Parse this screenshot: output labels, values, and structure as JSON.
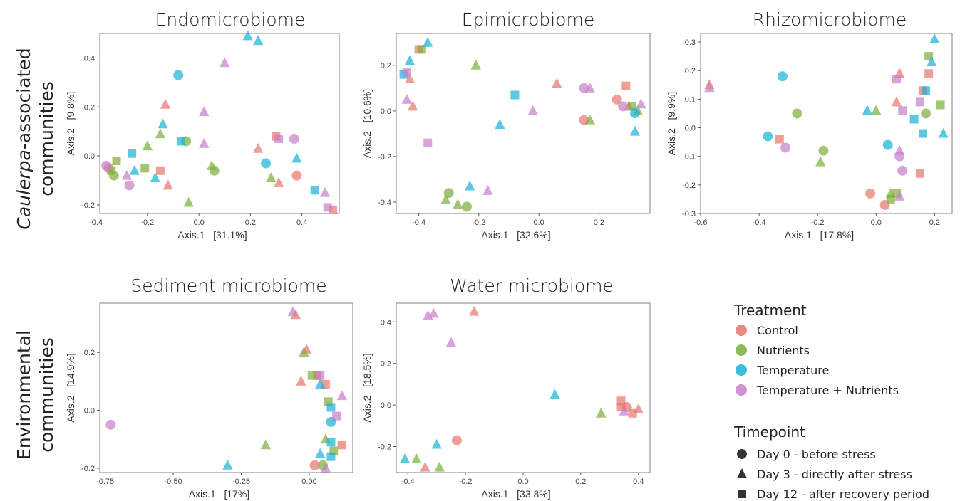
{
  "row_labels": {
    "top_line1": "Caulerpa-associated",
    "top_line1_italic": "Caulerpa",
    "top_line1_rest": "-associated",
    "top_line2": "communities",
    "bottom_line1": "Environmental",
    "bottom_line2": "communities"
  },
  "legend": {
    "treatment_title": "Treatment",
    "treatments": [
      {
        "name": "Control",
        "color": "#e8736b"
      },
      {
        "name": "Nutrients",
        "color": "#7cae3a"
      },
      {
        "name": "Temperature",
        "color": "#17b1d6"
      },
      {
        "name": "Temperature + Nutrients",
        "color": "#c57ec9"
      }
    ],
    "timepoint_title": "Timepoint",
    "timepoints": [
      {
        "name": "Day 0 - before stress",
        "shape": "circle"
      },
      {
        "name": "Day 3 - directly after stress",
        "shape": "triangle"
      },
      {
        "name": "Day 12 - after recovery period",
        "shape": "square"
      }
    ]
  },
  "chart_data": [
    {
      "type": "scatter",
      "title": "Endomicrobiome",
      "xlabel": "Axis.1   [31.1%]",
      "ylabel": "Axis.2   [9.8%]",
      "xlim": [
        -0.385,
        0.545
      ],
      "ylim": [
        -0.235,
        0.5
      ],
      "xticks": [
        -0.4,
        -0.2,
        0.0,
        0.2,
        0.4
      ],
      "xtick_labels": [
        "-0.4",
        "-0.2",
        "0.0",
        "0.2",
        "0.4"
      ],
      "yticks": [
        -0.2,
        0.0,
        0.2,
        0.4
      ],
      "ytick_labels": [
        "-0.2",
        "0.0",
        "0.2",
        "0.4"
      ],
      "points": [
        {
          "x": -0.35,
          "y": -0.05,
          "t": 0,
          "s": 0
        },
        {
          "x": -0.13,
          "y": 0.21,
          "t": 0,
          "s": 1
        },
        {
          "x": -0.15,
          "y": -0.06,
          "t": 0,
          "s": 2
        },
        {
          "x": -0.12,
          "y": -0.12,
          "t": 0,
          "s": 1
        },
        {
          "x": 0.23,
          "y": 0.03,
          "t": 0,
          "s": 1
        },
        {
          "x": 0.3,
          "y": 0.08,
          "t": 0,
          "s": 2
        },
        {
          "x": 0.31,
          "y": -0.11,
          "t": 0,
          "s": 1
        },
        {
          "x": 0.38,
          "y": -0.08,
          "t": 0,
          "s": 0
        },
        {
          "x": 0.52,
          "y": -0.22,
          "t": 0,
          "s": 2
        },
        {
          "x": -0.34,
          "y": -0.06,
          "t": 1,
          "s": 2
        },
        {
          "x": -0.32,
          "y": -0.02,
          "t": 1,
          "s": 2
        },
        {
          "x": -0.33,
          "y": -0.08,
          "t": 1,
          "s": 0
        },
        {
          "x": -0.2,
          "y": 0.04,
          "t": 1,
          "s": 1
        },
        {
          "x": -0.21,
          "y": -0.05,
          "t": 1,
          "s": 2
        },
        {
          "x": -0.15,
          "y": 0.09,
          "t": 1,
          "s": 1
        },
        {
          "x": -0.05,
          "y": 0.06,
          "t": 1,
          "s": 0
        },
        {
          "x": -0.04,
          "y": -0.19,
          "t": 1,
          "s": 1
        },
        {
          "x": 0.05,
          "y": -0.04,
          "t": 1,
          "s": 1
        },
        {
          "x": 0.06,
          "y": -0.06,
          "t": 1,
          "s": 0
        },
        {
          "x": 0.28,
          "y": -0.09,
          "t": 1,
          "s": 1
        },
        {
          "x": -0.08,
          "y": 0.33,
          "t": 2,
          "s": 0
        },
        {
          "x": 0.19,
          "y": 0.49,
          "t": 2,
          "s": 1
        },
        {
          "x": 0.23,
          "y": 0.47,
          "t": 2,
          "s": 1
        },
        {
          "x": -0.14,
          "y": 0.13,
          "t": 2,
          "s": 1
        },
        {
          "x": -0.26,
          "y": 0.01,
          "t": 2,
          "s": 2
        },
        {
          "x": -0.25,
          "y": -0.06,
          "t": 2,
          "s": 1
        },
        {
          "x": -0.17,
          "y": -0.09,
          "t": 2,
          "s": 1
        },
        {
          "x": -0.07,
          "y": 0.06,
          "t": 2,
          "s": 2
        },
        {
          "x": 0.26,
          "y": -0.03,
          "t": 2,
          "s": 0
        },
        {
          "x": 0.38,
          "y": -0.01,
          "t": 2,
          "s": 1
        },
        {
          "x": 0.45,
          "y": -0.14,
          "t": 2,
          "s": 2
        },
        {
          "x": -0.36,
          "y": -0.04,
          "t": 3,
          "s": 0
        },
        {
          "x": -0.27,
          "y": -0.12,
          "t": 3,
          "s": 0
        },
        {
          "x": -0.28,
          "y": -0.08,
          "t": 3,
          "s": 1
        },
        {
          "x": 0.02,
          "y": 0.18,
          "t": 3,
          "s": 1
        },
        {
          "x": 0.02,
          "y": 0.05,
          "t": 3,
          "s": 1
        },
        {
          "x": 0.1,
          "y": 0.38,
          "t": 3,
          "s": 1
        },
        {
          "x": 0.31,
          "y": 0.07,
          "t": 3,
          "s": 2
        },
        {
          "x": 0.37,
          "y": 0.07,
          "t": 3,
          "s": 0
        },
        {
          "x": 0.49,
          "y": -0.15,
          "t": 3,
          "s": 1
        },
        {
          "x": 0.5,
          "y": -0.21,
          "t": 3,
          "s": 2
        }
      ]
    },
    {
      "type": "scatter",
      "title": "Epimicrobiome",
      "xlabel": "Axis.1   [32.6%]",
      "ylabel": "Axis.2   [10.6%]",
      "xlim": [
        -0.475,
        0.37
      ],
      "ylim": [
        -0.45,
        0.34
      ],
      "xticks": [
        -0.4,
        -0.2,
        0.0,
        0.2
      ],
      "xtick_labels": [
        "-0.4",
        "-0.2",
        "0.0",
        "0.2"
      ],
      "yticks": [
        -0.4,
        -0.2,
        0.0,
        0.2
      ],
      "ytick_labels": [
        "-0.4",
        "-0.2",
        "0.0",
        "0.2"
      ],
      "points": [
        {
          "x": -0.43,
          "y": 0.14,
          "t": 0,
          "s": 1
        },
        {
          "x": -0.42,
          "y": 0.02,
          "t": 0,
          "s": 1
        },
        {
          "x": -0.4,
          "y": 0.27,
          "t": 0,
          "s": 2
        },
        {
          "x": 0.06,
          "y": 0.12,
          "t": 0,
          "s": 1
        },
        {
          "x": 0.15,
          "y": -0.04,
          "t": 0,
          "s": 0
        },
        {
          "x": 0.26,
          "y": 0.05,
          "t": 0,
          "s": 0
        },
        {
          "x": 0.29,
          "y": 0.11,
          "t": 0,
          "s": 2
        },
        {
          "x": 0.3,
          "y": 0.02,
          "t": 0,
          "s": 1
        },
        {
          "x": -0.39,
          "y": 0.27,
          "t": 1,
          "s": 2
        },
        {
          "x": -0.21,
          "y": 0.2,
          "t": 1,
          "s": 1
        },
        {
          "x": -0.3,
          "y": -0.36,
          "t": 1,
          "s": 0
        },
        {
          "x": -0.31,
          "y": -0.39,
          "t": 1,
          "s": 1
        },
        {
          "x": -0.27,
          "y": -0.41,
          "t": 1,
          "s": 1
        },
        {
          "x": -0.24,
          "y": -0.42,
          "t": 1,
          "s": 0
        },
        {
          "x": 0.17,
          "y": -0.04,
          "t": 1,
          "s": 1
        },
        {
          "x": 0.31,
          "y": 0.02,
          "t": 1,
          "s": 2
        },
        {
          "x": 0.33,
          "y": 0.0,
          "t": 1,
          "s": 1
        },
        {
          "x": -0.37,
          "y": 0.3,
          "t": 2,
          "s": 1
        },
        {
          "x": -0.43,
          "y": 0.22,
          "t": 2,
          "s": 1
        },
        {
          "x": -0.45,
          "y": 0.16,
          "t": 2,
          "s": 2
        },
        {
          "x": -0.08,
          "y": 0.07,
          "t": 2,
          "s": 2
        },
        {
          "x": -0.13,
          "y": -0.06,
          "t": 2,
          "s": 1
        },
        {
          "x": -0.23,
          "y": -0.33,
          "t": 2,
          "s": 1
        },
        {
          "x": 0.32,
          "y": -0.01,
          "t": 2,
          "s": 0
        },
        {
          "x": 0.32,
          "y": -0.09,
          "t": 2,
          "s": 1
        },
        {
          "x": -0.44,
          "y": 0.17,
          "t": 3,
          "s": 2
        },
        {
          "x": -0.44,
          "y": 0.05,
          "t": 3,
          "s": 1
        },
        {
          "x": -0.37,
          "y": -0.14,
          "t": 3,
          "s": 2
        },
        {
          "x": -0.02,
          "y": 0.0,
          "t": 3,
          "s": 1
        },
        {
          "x": -0.17,
          "y": -0.35,
          "t": 3,
          "s": 1
        },
        {
          "x": 0.15,
          "y": 0.1,
          "t": 3,
          "s": 0
        },
        {
          "x": 0.17,
          "y": 0.1,
          "t": 3,
          "s": 1
        },
        {
          "x": 0.28,
          "y": 0.02,
          "t": 3,
          "s": 0
        },
        {
          "x": 0.34,
          "y": 0.03,
          "t": 3,
          "s": 1
        }
      ]
    },
    {
      "type": "scatter",
      "title": "Rhizomicrobiome",
      "xlabel": "Axis.1   [17.8%]",
      "ylabel": "Axis.2   [9.9%]",
      "xlim": [
        -0.6,
        0.26
      ],
      "ylim": [
        -0.3,
        0.33
      ],
      "xticks": [
        -0.6,
        -0.4,
        -0.2,
        0.0,
        0.2
      ],
      "xtick_labels": [
        "-0.6",
        "-0.4",
        "-0.2",
        "0.0",
        "0.2"
      ],
      "yticks": [
        -0.3,
        -0.2,
        -0.1,
        0.0,
        0.1,
        0.2,
        0.3
      ],
      "ytick_labels": [
        "-0.3",
        "-0.2",
        "-0.1",
        "0.0",
        "0.1",
        "0.2",
        "0.3"
      ],
      "points": [
        {
          "x": -0.57,
          "y": 0.15,
          "t": 0,
          "s": 1
        },
        {
          "x": -0.33,
          "y": -0.04,
          "t": 0,
          "s": 2
        },
        {
          "x": -0.02,
          "y": -0.23,
          "t": 0,
          "s": 0
        },
        {
          "x": 0.03,
          "y": -0.27,
          "t": 0,
          "s": 0
        },
        {
          "x": 0.07,
          "y": 0.09,
          "t": 0,
          "s": 1
        },
        {
          "x": 0.08,
          "y": 0.19,
          "t": 0,
          "s": 1
        },
        {
          "x": 0.15,
          "y": -0.16,
          "t": 0,
          "s": 2
        },
        {
          "x": 0.16,
          "y": 0.13,
          "t": 0,
          "s": 2
        },
        {
          "x": 0.18,
          "y": 0.19,
          "t": 0,
          "s": 2
        },
        {
          "x": -0.27,
          "y": 0.05,
          "t": 1,
          "s": 0
        },
        {
          "x": -0.18,
          "y": -0.08,
          "t": 1,
          "s": 0
        },
        {
          "x": -0.19,
          "y": -0.12,
          "t": 1,
          "s": 1
        },
        {
          "x": 0.0,
          "y": 0.06,
          "t": 1,
          "s": 1
        },
        {
          "x": 0.05,
          "y": -0.23,
          "t": 1,
          "s": 1
        },
        {
          "x": 0.05,
          "y": -0.25,
          "t": 1,
          "s": 2
        },
        {
          "x": 0.07,
          "y": -0.23,
          "t": 1,
          "s": 2
        },
        {
          "x": 0.17,
          "y": 0.05,
          "t": 1,
          "s": 0
        },
        {
          "x": 0.18,
          "y": 0.25,
          "t": 1,
          "s": 2
        },
        {
          "x": 0.22,
          "y": 0.08,
          "t": 1,
          "s": 2
        },
        {
          "x": -0.32,
          "y": 0.18,
          "t": 2,
          "s": 0
        },
        {
          "x": -0.37,
          "y": -0.03,
          "t": 2,
          "s": 0
        },
        {
          "x": -0.03,
          "y": 0.06,
          "t": 2,
          "s": 1
        },
        {
          "x": 0.04,
          "y": -0.06,
          "t": 2,
          "s": 0
        },
        {
          "x": 0.13,
          "y": 0.03,
          "t": 2,
          "s": 2
        },
        {
          "x": 0.16,
          "y": -0.02,
          "t": 2,
          "s": 2
        },
        {
          "x": 0.17,
          "y": 0.13,
          "t": 2,
          "s": 2
        },
        {
          "x": 0.19,
          "y": 0.23,
          "t": 2,
          "s": 1
        },
        {
          "x": 0.2,
          "y": 0.31,
          "t": 2,
          "s": 1
        },
        {
          "x": 0.23,
          "y": -0.02,
          "t": 2,
          "s": 1
        },
        {
          "x": -0.31,
          "y": -0.07,
          "t": 3,
          "s": 0
        },
        {
          "x": -0.57,
          "y": 0.14,
          "t": 3,
          "s": 1
        },
        {
          "x": 0.07,
          "y": 0.17,
          "t": 3,
          "s": 2
        },
        {
          "x": 0.08,
          "y": -0.08,
          "t": 3,
          "s": 1
        },
        {
          "x": 0.09,
          "y": 0.06,
          "t": 3,
          "s": 2
        },
        {
          "x": 0.08,
          "y": -0.1,
          "t": 3,
          "s": 0
        },
        {
          "x": 0.09,
          "y": -0.15,
          "t": 3,
          "s": 0
        },
        {
          "x": 0.08,
          "y": -0.24,
          "t": 3,
          "s": 1
        },
        {
          "x": 0.15,
          "y": 0.09,
          "t": 3,
          "s": 2
        }
      ]
    },
    {
      "type": "scatter",
      "title": "Sediment microbiome",
      "xlabel": "Axis.1   [17%]",
      "ylabel": "Axis.2   [14.9%]",
      "xlim": [
        -0.77,
        0.16
      ],
      "ylim": [
        -0.215,
        0.37
      ],
      "xticks": [
        -0.75,
        -0.5,
        -0.25,
        0.0
      ],
      "xtick_labels": [
        "-0.75",
        "-0.50",
        "-0.25",
        "0.00"
      ],
      "yticks": [
        -0.2,
        0.0,
        0.2
      ],
      "ytick_labels": [
        "-0.2",
        "0.0",
        "0.2"
      ],
      "points": [
        {
          "x": -0.05,
          "y": 0.33,
          "t": 0,
          "s": 1
        },
        {
          "x": -0.01,
          "y": 0.21,
          "t": 0,
          "s": 1
        },
        {
          "x": -0.03,
          "y": 0.1,
          "t": 0,
          "s": 1
        },
        {
          "x": 0.03,
          "y": 0.12,
          "t": 0,
          "s": 2
        },
        {
          "x": 0.06,
          "y": 0.09,
          "t": 0,
          "s": 2
        },
        {
          "x": 0.12,
          "y": -0.12,
          "t": 0,
          "s": 2
        },
        {
          "x": 0.02,
          "y": -0.19,
          "t": 0,
          "s": 0
        },
        {
          "x": -0.02,
          "y": 0.2,
          "t": 1,
          "s": 1
        },
        {
          "x": 0.01,
          "y": 0.12,
          "t": 1,
          "s": 2
        },
        {
          "x": 0.07,
          "y": 0.03,
          "t": 1,
          "s": 2
        },
        {
          "x": 0.06,
          "y": -0.1,
          "t": 1,
          "s": 1
        },
        {
          "x": 0.09,
          "y": -0.14,
          "t": 1,
          "s": 2
        },
        {
          "x": 0.05,
          "y": -0.19,
          "t": 1,
          "s": 0
        },
        {
          "x": -0.16,
          "y": -0.12,
          "t": 1,
          "s": 1
        },
        {
          "x": 0.04,
          "y": 0.09,
          "t": 2,
          "s": 1
        },
        {
          "x": 0.08,
          "y": 0.01,
          "t": 2,
          "s": 2
        },
        {
          "x": 0.08,
          "y": -0.04,
          "t": 2,
          "s": 0
        },
        {
          "x": 0.08,
          "y": -0.11,
          "t": 2,
          "s": 2
        },
        {
          "x": 0.04,
          "y": -0.15,
          "t": 2,
          "s": 1
        },
        {
          "x": 0.08,
          "y": -0.16,
          "t": 2,
          "s": 2
        },
        {
          "x": -0.3,
          "y": -0.19,
          "t": 2,
          "s": 1
        },
        {
          "x": -0.06,
          "y": 0.34,
          "t": 3,
          "s": 1
        },
        {
          "x": 0.04,
          "y": 0.12,
          "t": 3,
          "s": 2
        },
        {
          "x": 0.12,
          "y": 0.05,
          "t": 3,
          "s": 1
        },
        {
          "x": 0.1,
          "y": -0.02,
          "t": 3,
          "s": 2
        },
        {
          "x": 0.06,
          "y": -0.2,
          "t": 3,
          "s": 1
        },
        {
          "x": -0.73,
          "y": -0.05,
          "t": 3,
          "s": 0
        }
      ]
    },
    {
      "type": "scatter",
      "title": "Water microbiome",
      "xlabel": "Axis.1   [33.8%]",
      "ylabel": "Axis.2   [18.5%]",
      "xlim": [
        -0.44,
        0.44
      ],
      "ylim": [
        -0.325,
        0.49
      ],
      "xticks": [
        -0.4,
        -0.2,
        0.0,
        0.2,
        0.4
      ],
      "xtick_labels": [
        "-0.4",
        "-0.2",
        "0.0",
        "0.2",
        "0.4"
      ],
      "yticks": [
        -0.2,
        0.0,
        0.2,
        0.4
      ],
      "ytick_labels": [
        "-0.2",
        "0.0",
        "0.2",
        "0.4"
      ],
      "points": [
        {
          "x": -0.17,
          "y": 0.45,
          "t": 0,
          "s": 1
        },
        {
          "x": -0.23,
          "y": -0.17,
          "t": 0,
          "s": 0
        },
        {
          "x": -0.34,
          "y": -0.3,
          "t": 0,
          "s": 1
        },
        {
          "x": 0.34,
          "y": 0.02,
          "t": 0,
          "s": 2
        },
        {
          "x": 0.34,
          "y": -0.01,
          "t": 0,
          "s": 2
        },
        {
          "x": 0.36,
          "y": -0.01,
          "t": 0,
          "s": 0
        },
        {
          "x": 0.38,
          "y": -0.04,
          "t": 0,
          "s": 2
        },
        {
          "x": 0.4,
          "y": -0.02,
          "t": 0,
          "s": 1
        },
        {
          "x": -0.37,
          "y": -0.26,
          "t": 1,
          "s": 1
        },
        {
          "x": -0.29,
          "y": -0.3,
          "t": 1,
          "s": 1
        },
        {
          "x": 0.27,
          "y": -0.04,
          "t": 1,
          "s": 1
        },
        {
          "x": -0.41,
          "y": -0.26,
          "t": 2,
          "s": 1
        },
        {
          "x": -0.3,
          "y": -0.19,
          "t": 2,
          "s": 1
        },
        {
          "x": 0.11,
          "y": 0.05,
          "t": 2,
          "s": 1
        },
        {
          "x": -0.33,
          "y": 0.43,
          "t": 3,
          "s": 1
        },
        {
          "x": -0.31,
          "y": 0.44,
          "t": 3,
          "s": 1
        },
        {
          "x": -0.25,
          "y": 0.3,
          "t": 3,
          "s": 1
        },
        {
          "x": 0.35,
          "y": -0.03,
          "t": 3,
          "s": 1
        }
      ]
    }
  ]
}
